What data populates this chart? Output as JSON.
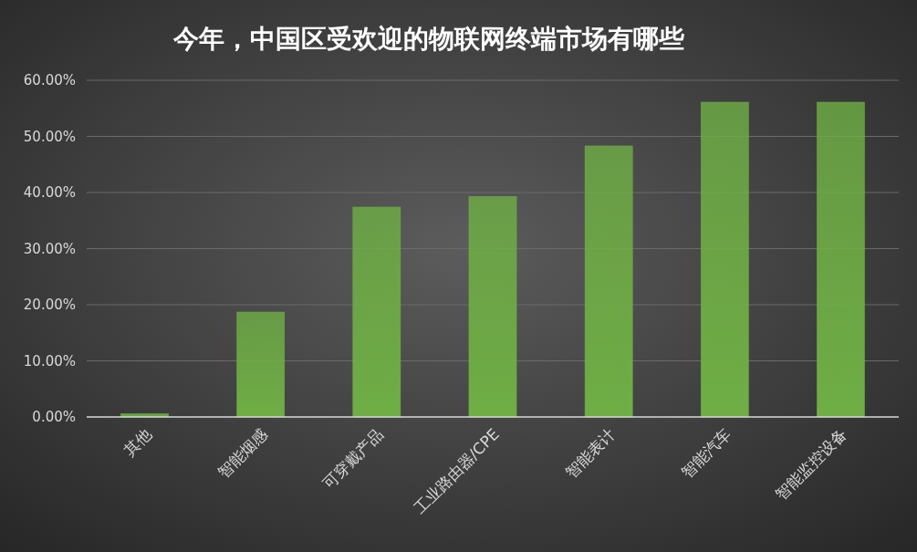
{
  "chart_data": {
    "type": "bar",
    "title": "今年，中国区受欢迎的物联网终端市场有哪些",
    "categories": [
      "其他",
      "智能烟感",
      "可穿戴产品",
      "工业路由器/CPE",
      "智能表计",
      "智能汽车",
      "智能监控设备"
    ],
    "values": [
      0.6,
      18.7,
      37.4,
      39.3,
      48.3,
      56.1,
      56.1
    ],
    "color": "#6fae45",
    "ylim": [
      0,
      60
    ],
    "yticks": [
      {
        "value": 0,
        "label": "0.00%"
      },
      {
        "value": 10,
        "label": "10.00%"
      },
      {
        "value": 20,
        "label": "20.00%"
      },
      {
        "value": 30,
        "label": "30.00%"
      },
      {
        "value": 40,
        "label": "40.00%"
      },
      {
        "value": 50,
        "label": "50.00%"
      },
      {
        "value": 60,
        "label": "60.00%"
      }
    ],
    "grid": "y"
  }
}
